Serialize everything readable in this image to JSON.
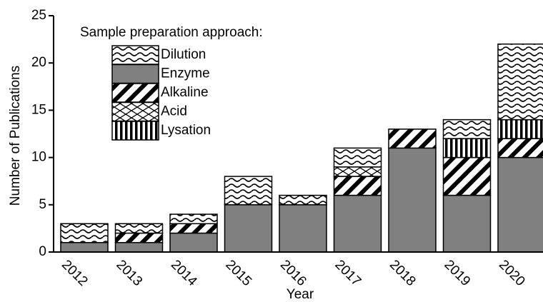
{
  "chart_data": {
    "type": "bar",
    "stacked": true,
    "legend_title": "Sample preparation approach:",
    "x_label": "Year",
    "y_label": "Number of Publications",
    "categories": [
      "2012",
      "2013",
      "2014",
      "2015",
      "2016",
      "2017",
      "2018",
      "2019",
      "2020"
    ],
    "series": [
      {
        "name": "Enzyme",
        "pattern": "solid",
        "color": "#808080",
        "values": [
          1,
          1,
          2,
          5,
          5,
          6,
          11,
          6,
          10
        ]
      },
      {
        "name": "Alkaline",
        "pattern": "diagonal",
        "color": "#000000",
        "values": [
          0,
          1,
          1,
          0,
          0,
          2,
          2,
          4,
          2
        ]
      },
      {
        "name": "Lysation",
        "pattern": "vertical",
        "color": "#000000",
        "values": [
          0,
          0,
          0,
          0,
          0,
          0,
          0,
          2,
          2
        ]
      },
      {
        "name": "Acid",
        "pattern": "cross",
        "color": "#000000",
        "values": [
          0,
          0,
          0,
          0,
          0,
          1,
          0,
          0,
          0
        ]
      },
      {
        "name": "Dilution",
        "pattern": "wave",
        "color": "#000000",
        "values": [
          2,
          1,
          1,
          3,
          1,
          2,
          0,
          2,
          8
        ]
      }
    ],
    "legend_order": [
      4,
      0,
      1,
      3,
      2
    ],
    "ylim": [
      0,
      25
    ],
    "yticks": [
      0,
      5,
      10,
      15,
      20,
      25
    ]
  }
}
